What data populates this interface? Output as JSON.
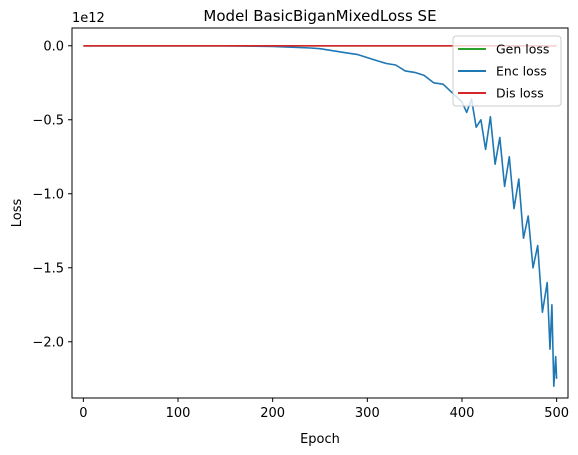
{
  "chart_data": {
    "type": "line",
    "title": "Model BasicBiganMixedLoss SE",
    "xlabel": "Epoch",
    "ylabel": "Loss",
    "y_offset_label": "1e12",
    "xlim": [
      -12,
      512
    ],
    "ylim": [
      -2380000000000.0,
      120000000000.0
    ],
    "x_ticks": [
      0,
      100,
      200,
      300,
      400,
      500
    ],
    "x_tick_labels": [
      "0",
      "100",
      "200",
      "300",
      "400",
      "500"
    ],
    "y_ticks": [
      0.0,
      -500000000000.0,
      -1000000000000.0,
      -1500000000000.0,
      -2000000000000.0
    ],
    "y_tick_labels": [
      "0.0",
      "−0.5",
      "−1.0",
      "−1.5",
      "−2.0"
    ],
    "grid": false,
    "legend_position": "top-right",
    "series": [
      {
        "name": "Gen loss",
        "color": "#2ca02c",
        "x": [
          0,
          500
        ],
        "y": [
          0,
          0
        ]
      },
      {
        "name": "Enc loss",
        "color": "#1f77b4",
        "x": [
          0,
          50,
          100,
          150,
          200,
          220,
          240,
          250,
          260,
          270,
          280,
          290,
          300,
          310,
          320,
          330,
          340,
          350,
          360,
          370,
          380,
          390,
          400,
          405,
          410,
          415,
          420,
          425,
          430,
          435,
          440,
          445,
          450,
          455,
          460,
          465,
          470,
          475,
          480,
          485,
          490,
          493,
          495,
          497,
          499,
          500
        ],
        "y": [
          0,
          0,
          0,
          0,
          -5000000000.0,
          -10000000000.0,
          -15000000000.0,
          -20000000000.0,
          -30000000000.0,
          -40000000000.0,
          -50000000000.0,
          -60000000000.0,
          -80000000000.0,
          -100000000000.0,
          -120000000000.0,
          -130000000000.0,
          -170000000000.0,
          -180000000000.0,
          -200000000000.0,
          -250000000000.0,
          -260000000000.0,
          -320000000000.0,
          -380000000000.0,
          -450000000000.0,
          -360000000000.0,
          -550000000000.0,
          -500000000000.0,
          -700000000000.0,
          -480000000000.0,
          -800000000000.0,
          -620000000000.0,
          -950000000000.0,
          -750000000000.0,
          -1100000000000.0,
          -900000000000.0,
          -1300000000000.0,
          -1150000000000.0,
          -1500000000000.0,
          -1350000000000.0,
          -1800000000000.0,
          -1600000000000.0,
          -2050000000000.0,
          -1750000000000.0,
          -2300000000000.0,
          -2100000000000.0,
          -2250000000000.0
        ]
      },
      {
        "name": "Dis loss",
        "color": "#d62728",
        "x": [
          0,
          500
        ],
        "y": [
          0,
          0
        ]
      }
    ]
  }
}
